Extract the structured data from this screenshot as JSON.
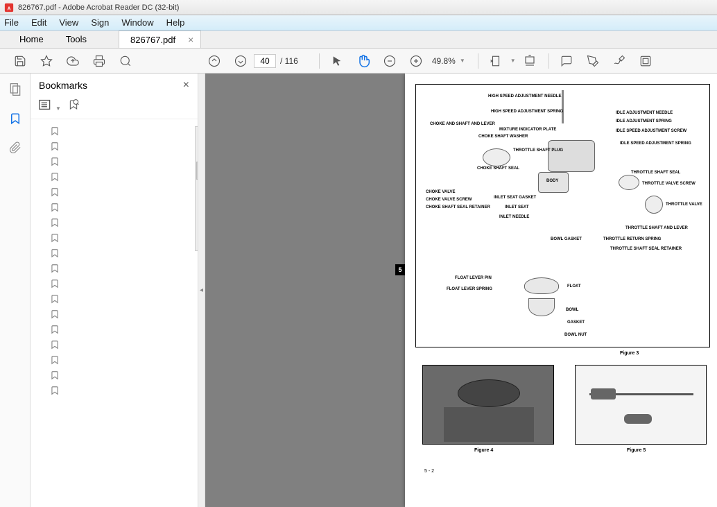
{
  "window": {
    "title": "826767.pdf - Adobe Acrobat Reader DC (32-bit)"
  },
  "menu": {
    "file": "File",
    "edit": "Edit",
    "view": "View",
    "sign": "Sign",
    "window": "Window",
    "help": "Help"
  },
  "tabs": {
    "home": "Home",
    "tools": "Tools",
    "doc": "826767.pdf"
  },
  "toolbar": {
    "page_current": "40",
    "page_sep": "/ 116",
    "zoom": "49.8%"
  },
  "sidebar": {
    "title": "Bookmarks",
    "item_count": 18
  },
  "doc": {
    "page_tab": "5",
    "fig3": "Figure 3",
    "fig4": "Figure 4",
    "fig5": "Figure 5",
    "pagenum": "5 - 2",
    "labels": {
      "l1": "HIGH SPEED ADJUSTMENT NEEDLE",
      "l2": "HIGH SPEED ADJUSTMENT SPRING",
      "l3": "CHOKE AND SHAFT AND LEVER",
      "l4": "MIXTURE INDICATOR PLATE",
      "l5": "CHOKE SHAFT WASHER",
      "l6": "CHOKE SHAFT SEAL",
      "l7": "CHOKE VALVE",
      "l8": "CHOKE VALVE SCREW",
      "l9": "CHOKE SHAFT SEAL RETAINER",
      "l10": "THROTTLE SHAFT PLUG",
      "l11": "BODY",
      "l12": "INLET SEAT GASKET",
      "l13": "INLET SEAT",
      "l14": "INLET NEEDLE",
      "l15": "BOWL GASKET",
      "l16": "FLOAT LEVER PIN",
      "l17": "FLOAT LEVER SPRING",
      "l18": "FLOAT",
      "l19": "BOWL",
      "l20": "GASKET",
      "l21": "BOWL NUT",
      "r1": "IDLE ADJUSTMENT NEEDLE",
      "r2": "IDLE ADJUSTMENT SPRING",
      "r3": "IDLE SPEED ADJUSTMENT SCREW",
      "r4": "IDLE SPEED ADJUSTMENT SPRING",
      "r5": "THROTTLE SHAFT SEAL",
      "r6": "THROTTLE VALVE SCREW",
      "r7": "THROTTLE VALVE",
      "r8": "THROTTLE SHAFT AND LEVER",
      "r9": "THROTTLE RETURN SPRING",
      "r10": "THROTTLE SHAFT SEAL RETAINER"
    }
  },
  "colors": {
    "accent": "#1473e6",
    "titlebar": "#e8e8e8",
    "menubar": "#d5edf9",
    "docbg": "#808080"
  }
}
